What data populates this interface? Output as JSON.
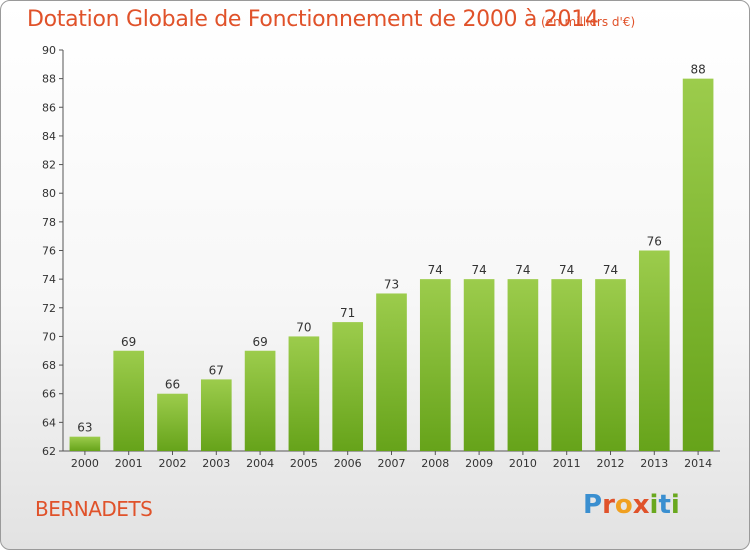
{
  "header": {
    "title": "Dotation Globale de Fonctionnement de 2000 à 2014",
    "unit": "(en milliers d'€)"
  },
  "footer": {
    "place": "BERNADETS",
    "logo": {
      "letters": [
        "P",
        "r",
        "o",
        "x",
        "i",
        "t",
        "i"
      ],
      "colors": [
        "#3a8fd0",
        "#e0522a",
        "#f0a020",
        "#e0522a",
        "#69a81e",
        "#3a8fd0",
        "#69a81e"
      ]
    }
  },
  "chart_data": {
    "type": "bar",
    "title": "Dotation Globale de Fonctionnement de 2000 à 2014",
    "categories": [
      "2000",
      "2001",
      "2002",
      "2003",
      "2004",
      "2005",
      "2006",
      "2007",
      "2008",
      "2009",
      "2010",
      "2011",
      "2012",
      "2013",
      "2014"
    ],
    "values": [
      63,
      69,
      66,
      67,
      69,
      70,
      71,
      73,
      74,
      74,
      74,
      74,
      74,
      76,
      88
    ],
    "ylim": [
      62,
      90
    ],
    "yticks": [
      62,
      64,
      66,
      68,
      70,
      72,
      74,
      76,
      78,
      80,
      82,
      84,
      86,
      88,
      90
    ],
    "grid": false,
    "colors": {
      "bar_top": "#9ccc4c",
      "bar_bottom": "#66a31a",
      "accent": "#e0522a"
    }
  }
}
